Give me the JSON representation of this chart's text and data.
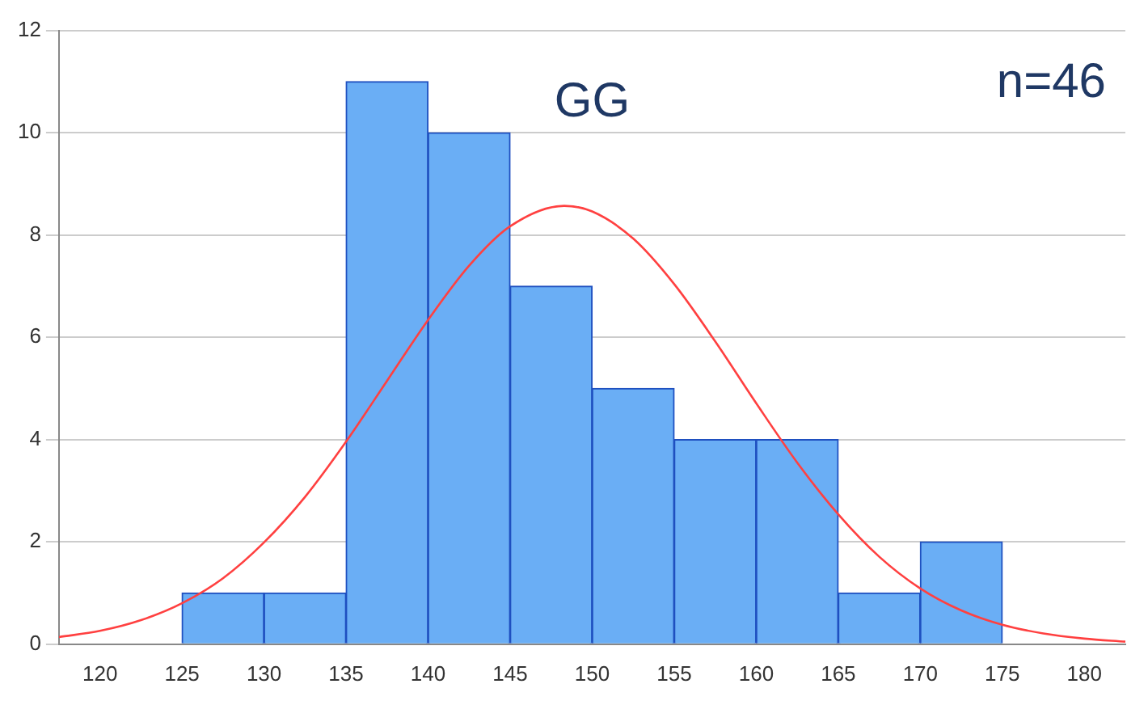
{
  "chart_data": {
    "type": "histogram",
    "title": "GG",
    "annotations": [
      "n=46"
    ],
    "bins": [
      125,
      130,
      135,
      140,
      145,
      150,
      155,
      160,
      165,
      170,
      175
    ],
    "values": [
      1,
      1,
      11,
      10,
      7,
      5,
      4,
      4,
      1,
      2
    ],
    "color": "#6aaef5",
    "series": [
      {
        "type": "line",
        "color": "#ff4040",
        "x": [
          117.5,
          120,
          122.5,
          125,
          127.5,
          130,
          132.5,
          135,
          137.5,
          140,
          142.5,
          145,
          148.3,
          150,
          152.5,
          155,
          157.5,
          160,
          162.5,
          165,
          167.5,
          170,
          172.5,
          175,
          177.5,
          180,
          182.5
        ],
        "values": [
          0.14,
          0.26,
          0.47,
          0.8,
          1.29,
          1.99,
          2.88,
          3.96,
          5.15,
          6.34,
          7.4,
          8.17,
          8.57,
          8.46,
          7.93,
          7.04,
          5.92,
          4.71,
          3.55,
          2.54,
          1.71,
          1.09,
          0.66,
          0.38,
          0.21,
          0.11,
          0.05
        ]
      }
    ],
    "xlim": [
      117.5,
      182.5
    ],
    "xticks": [
      120,
      125,
      130,
      135,
      140,
      145,
      150,
      155,
      160,
      165,
      170,
      175,
      180
    ],
    "ylim": [
      0,
      12
    ],
    "yticks": [
      0,
      2,
      4,
      6,
      8,
      10,
      12
    ],
    "grid": "y",
    "legend": false,
    "marker": "none",
    "line_style": "solid"
  }
}
